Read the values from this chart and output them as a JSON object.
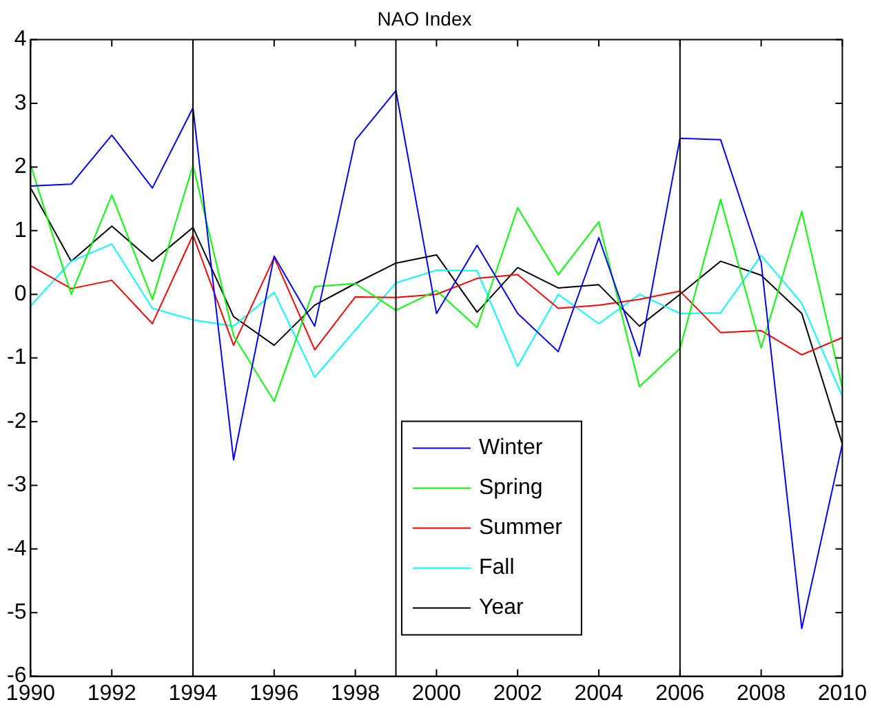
{
  "chart_data": {
    "type": "line",
    "title": "NAO Index",
    "x": [
      1990,
      1991,
      1992,
      1993,
      1994,
      1995,
      1996,
      1997,
      1998,
      1999,
      2000,
      2001,
      2002,
      2003,
      2004,
      2005,
      2006,
      2007,
      2008,
      2009,
      2010
    ],
    "series": [
      {
        "name": "Winter",
        "color": "#0000ff",
        "values": [
          1.7,
          1.73,
          2.5,
          1.67,
          2.93,
          -2.6,
          0.6,
          -0.5,
          2.42,
          3.2,
          -0.3,
          0.77,
          -0.3,
          -0.9,
          0.89,
          -0.97,
          2.45,
          2.43,
          0.5,
          -5.25,
          -2.35
        ]
      },
      {
        "name": "Spring",
        "color": "#00ff00",
        "values": [
          2.03,
          0.0,
          1.56,
          -0.08,
          2.03,
          -0.65,
          -1.68,
          0.12,
          0.17,
          -0.25,
          0.06,
          -0.52,
          1.36,
          0.31,
          1.14,
          -1.45,
          -0.85,
          1.49,
          -0.84,
          1.3,
          -1.47
        ]
      },
      {
        "name": "Summer",
        "color": "#ff0000",
        "values": [
          0.45,
          0.09,
          0.22,
          -0.46,
          0.93,
          -0.8,
          0.58,
          -0.87,
          -0.04,
          -0.05,
          0.0,
          0.25,
          0.31,
          -0.22,
          -0.17,
          -0.08,
          0.05,
          -0.6,
          -0.57,
          -0.95,
          -0.68
        ]
      },
      {
        "name": "Fall",
        "color": "#00ffff",
        "values": [
          -0.18,
          0.52,
          0.79,
          -0.22,
          -0.4,
          -0.5,
          0.03,
          -1.3,
          -0.56,
          0.18,
          0.38,
          0.37,
          -1.13,
          0.0,
          -0.46,
          0.0,
          -0.3,
          -0.29,
          0.61,
          -0.14,
          -1.6
        ]
      },
      {
        "name": "Year",
        "color": "#000000",
        "values": [
          1.67,
          0.52,
          1.07,
          0.52,
          1.05,
          -0.35,
          -0.8,
          -0.17,
          0.17,
          0.49,
          0.62,
          -0.28,
          0.42,
          0.1,
          0.15,
          -0.5,
          0.0,
          0.52,
          0.3,
          -0.3,
          -2.35
        ]
      }
    ],
    "xlim": [
      1990,
      2010
    ],
    "xticks": [
      1990,
      1992,
      1994,
      1996,
      1998,
      2000,
      2002,
      2004,
      2006,
      2008,
      2010
    ],
    "ylim": [
      -6,
      4
    ],
    "yticks": [
      -6,
      -5,
      -4,
      -3,
      -2,
      -1,
      0,
      1,
      2,
      3,
      4
    ],
    "ref_lines": [
      {
        "axis": "x",
        "value": 1994,
        "color": "#000000"
      },
      {
        "axis": "x",
        "value": 1999,
        "color": "#000000"
      },
      {
        "axis": "x",
        "value": 2006,
        "color": "#000000"
      }
    ],
    "grid": false,
    "legend": "bottom",
    "marker": "none",
    "line_style": "solid"
  }
}
